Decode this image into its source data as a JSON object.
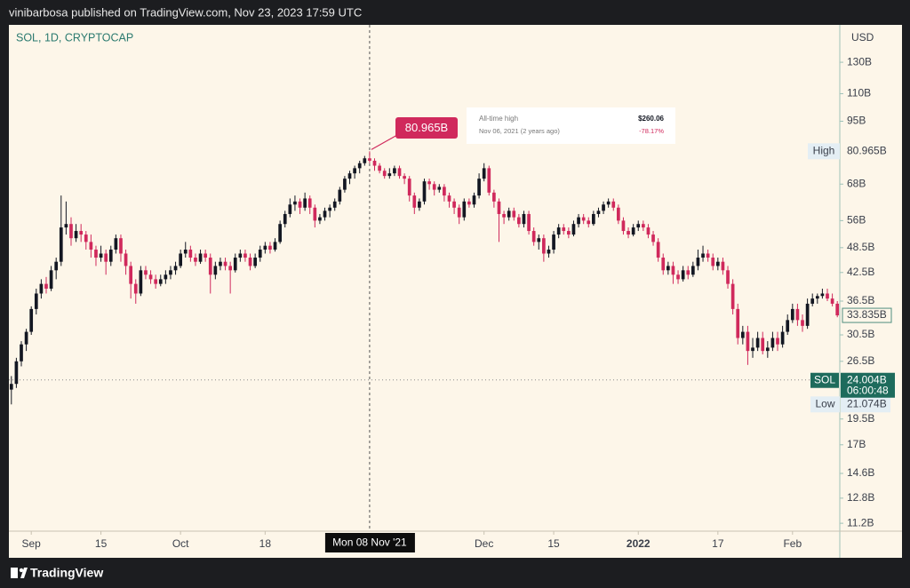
{
  "header": {
    "publisher_line": "vinibarbosa published on TradingView.com, Nov 23, 2023 17:59 UTC"
  },
  "footer": {
    "brand": "TradingView"
  },
  "chart_data": {
    "type": "candlestick",
    "symbol": "SOL, 1D, CRYPTOCAP",
    "currency": "USD",
    "log_scale": true,
    "grid": false,
    "up_color": "#131722",
    "down_color": "#d0295c",
    "ylim": [
      10.74,
      157.1
    ],
    "yticks": [
      {
        "value": 130,
        "label": "130B"
      },
      {
        "value": 110,
        "label": "110B"
      },
      {
        "value": 95,
        "label": "95B"
      },
      {
        "value": 68,
        "label": "68B"
      },
      {
        "value": 56,
        "label": "56B"
      },
      {
        "value": 48.5,
        "label": "48.5B"
      },
      {
        "value": 42.5,
        "label": "42.5B"
      },
      {
        "value": 36.5,
        "label": "36.5B"
      },
      {
        "value": 30.5,
        "label": "30.5B"
      },
      {
        "value": 26.5,
        "label": "26.5B"
      },
      {
        "value": 19.5,
        "label": "19.5B"
      },
      {
        "value": 17,
        "label": "17B"
      },
      {
        "value": 14.6,
        "label": "14.6B"
      },
      {
        "value": 12.8,
        "label": "12.8B"
      },
      {
        "value": 11.2,
        "label": "11.2B"
      }
    ],
    "xlim": [
      -0.5,
      166.5
    ],
    "xticks": [
      {
        "value": 4,
        "label": "Sep"
      },
      {
        "value": 18,
        "label": "15"
      },
      {
        "value": 34,
        "label": "Oct"
      },
      {
        "value": 51,
        "label": "18"
      },
      {
        "value": 95,
        "label": "Dec"
      },
      {
        "value": 109,
        "label": "15"
      },
      {
        "value": 126,
        "label": "2022",
        "bold": true
      },
      {
        "value": 142,
        "label": "17"
      },
      {
        "value": 157,
        "label": "Feb"
      }
    ],
    "crosshair": {
      "x": 72,
      "label": "Mon 08 Nov '21"
    },
    "high": {
      "label": "High",
      "value": 80.965,
      "value_label": "80.965B"
    },
    "low": {
      "label": "Low",
      "value": 21.074,
      "value_label": "21.074B"
    },
    "last_price": {
      "value": 33.835,
      "value_label": "33.835B"
    },
    "current": {
      "name": "SOL",
      "value": 24.004,
      "value_label": "24.004B",
      "countdown": "06:00:48"
    },
    "tooltip": {
      "title": "All-time high",
      "price": "$260.06",
      "date": "Nov 06, 2021 (2 years ago)",
      "change": "-78.17%"
    },
    "ohlc": [
      [
        22.8,
        24.5,
        21.074,
        23.5
      ],
      [
        23.5,
        27,
        23,
        26.5
      ],
      [
        26.5,
        29.5,
        25.8,
        29
      ],
      [
        29,
        31.5,
        28,
        31
      ],
      [
        31,
        35.5,
        30.5,
        35
      ],
      [
        35,
        39,
        34,
        38
      ],
      [
        38,
        41,
        37,
        40
      ],
      [
        40,
        41.5,
        38,
        39
      ],
      [
        39,
        44,
        38.5,
        43
      ],
      [
        43,
        46,
        41,
        45
      ],
      [
        45,
        64,
        44,
        54
      ],
      [
        54,
        62,
        52,
        55
      ],
      [
        55,
        57,
        49,
        51
      ],
      [
        51,
        55,
        50,
        53
      ],
      [
        53,
        55,
        50,
        52
      ],
      [
        52,
        53,
        48,
        50
      ],
      [
        50,
        52,
        46,
        48
      ],
      [
        48,
        49,
        44,
        46
      ],
      [
        46,
        49,
        45,
        47
      ],
      [
        47,
        48,
        42,
        45
      ],
      [
        45,
        49,
        44,
        48
      ],
      [
        48,
        52,
        47,
        51
      ],
      [
        51,
        52,
        45,
        47
      ],
      [
        47,
        48,
        42,
        44
      ],
      [
        44,
        45,
        37,
        40
      ],
      [
        40,
        41,
        36,
        38
      ],
      [
        38,
        44,
        37.5,
        43
      ],
      [
        43,
        44,
        41,
        42
      ],
      [
        42,
        43,
        40,
        41
      ],
      [
        41,
        42,
        39,
        40
      ],
      [
        40,
        42,
        39.5,
        41
      ],
      [
        41,
        43,
        40,
        42
      ],
      [
        42,
        44,
        41,
        43
      ],
      [
        43,
        45,
        42,
        44
      ],
      [
        44,
        48,
        43.5,
        47
      ],
      [
        47,
        50,
        46,
        48
      ],
      [
        48,
        49,
        45,
        46
      ],
      [
        46,
        47,
        44,
        45
      ],
      [
        45,
        48,
        44.5,
        47
      ],
      [
        47,
        48,
        45,
        46
      ],
      [
        46,
        47,
        38,
        42
      ],
      [
        42,
        45,
        41,
        44
      ],
      [
        44,
        46,
        43,
        45
      ],
      [
        45,
        46,
        43,
        44
      ],
      [
        44,
        45,
        38,
        43
      ],
      [
        43,
        47,
        42.5,
        46
      ],
      [
        46,
        48,
        45,
        47
      ],
      [
        47,
        48,
        45,
        46
      ],
      [
        46,
        47,
        43,
        44
      ],
      [
        44,
        47,
        43.5,
        46
      ],
      [
        46,
        49,
        45,
        48
      ],
      [
        48,
        50,
        47,
        49
      ],
      [
        49,
        50,
        47,
        48
      ],
      [
        48,
        51,
        47.5,
        50
      ],
      [
        50,
        56,
        49.5,
        55
      ],
      [
        55,
        59,
        54,
        58
      ],
      [
        58,
        63,
        57,
        61
      ],
      [
        61,
        64,
        59,
        62
      ],
      [
        62,
        63,
        58,
        60
      ],
      [
        60,
        65,
        59,
        63
      ],
      [
        63,
        64,
        58,
        60
      ],
      [
        60,
        61,
        54,
        56
      ],
      [
        56,
        58,
        55,
        57
      ],
      [
        57,
        60,
        56,
        59
      ],
      [
        59,
        61,
        57,
        60
      ],
      [
        60,
        63,
        59,
        62
      ],
      [
        62,
        67,
        61,
        66
      ],
      [
        66,
        71,
        65,
        70
      ],
      [
        70,
        73,
        68,
        72
      ],
      [
        72,
        75,
        70,
        74
      ],
      [
        74,
        77,
        72,
        76
      ],
      [
        76,
        79,
        75,
        78
      ],
      [
        78,
        80.965,
        76,
        77
      ],
      [
        77,
        78,
        73,
        75
      ],
      [
        75,
        76,
        72,
        73
      ],
      [
        73,
        74,
        70,
        71
      ],
      [
        71,
        74,
        70,
        72
      ],
      [
        72,
        75,
        71,
        74
      ],
      [
        74,
        75,
        70,
        71
      ],
      [
        71,
        72,
        68,
        70
      ],
      [
        70,
        71,
        62,
        64
      ],
      [
        64,
        65,
        58,
        60
      ],
      [
        60,
        63,
        59,
        62
      ],
      [
        62,
        70,
        61,
        69
      ],
      [
        69,
        70,
        66,
        68
      ],
      [
        68,
        69,
        64,
        66
      ],
      [
        66,
        68,
        65,
        67
      ],
      [
        67,
        68,
        62,
        64
      ],
      [
        64,
        65,
        60,
        62
      ],
      [
        62,
        63,
        58,
        60
      ],
      [
        60,
        61,
        55,
        57
      ],
      [
        57,
        63,
        56,
        62
      ],
      [
        62,
        63,
        60,
        61
      ],
      [
        61,
        65,
        60,
        64
      ],
      [
        64,
        72,
        63,
        70
      ],
      [
        70,
        76,
        69,
        74
      ],
      [
        74,
        75,
        64,
        65
      ],
      [
        65,
        66,
        60,
        62
      ],
      [
        62,
        63,
        50,
        58
      ],
      [
        58,
        59,
        55,
        57
      ],
      [
        57,
        60,
        56,
        59
      ],
      [
        59,
        60,
        56,
        57
      ],
      [
        57,
        58,
        54,
        55
      ],
      [
        55,
        59,
        54,
        58
      ],
      [
        58,
        59,
        52,
        53
      ],
      [
        53,
        54,
        49,
        50
      ],
      [
        50,
        52,
        48,
        51
      ],
      [
        51,
        52,
        45,
        47
      ],
      [
        47,
        49,
        46,
        48
      ],
      [
        48,
        53,
        47,
        52
      ],
      [
        52,
        55,
        51,
        54
      ],
      [
        54,
        55,
        52,
        53
      ],
      [
        53,
        54,
        51,
        52
      ],
      [
        52,
        56,
        51.5,
        55
      ],
      [
        55,
        58,
        54,
        57
      ],
      [
        57,
        58,
        55,
        56
      ],
      [
        56,
        57,
        54,
        55
      ],
      [
        55,
        59,
        54.5,
        58
      ],
      [
        58,
        60,
        57,
        59
      ],
      [
        59,
        62,
        58,
        61
      ],
      [
        61,
        63,
        60,
        62
      ],
      [
        62,
        63,
        59,
        60
      ],
      [
        60,
        61,
        55,
        56
      ],
      [
        56,
        57,
        52,
        53
      ],
      [
        53,
        54,
        51,
        52
      ],
      [
        52,
        55,
        51.5,
        54
      ],
      [
        54,
        56,
        53,
        55
      ],
      [
        55,
        56,
        53,
        54
      ],
      [
        54,
        55,
        51,
        52
      ],
      [
        52,
        53,
        49,
        50
      ],
      [
        50,
        51,
        45,
        46
      ],
      [
        46,
        47,
        42,
        43
      ],
      [
        43,
        45,
        42,
        44
      ],
      [
        44,
        45,
        40,
        42
      ],
      [
        42,
        43,
        40,
        41
      ],
      [
        41,
        44,
        40.5,
        43
      ],
      [
        43,
        44,
        41,
        42
      ],
      [
        42,
        45,
        41.5,
        44
      ],
      [
        44,
        48,
        43,
        46
      ],
      [
        46,
        49,
        45,
        47
      ],
      [
        47,
        48,
        45,
        46
      ],
      [
        46,
        47,
        43,
        44
      ],
      [
        44,
        46,
        43,
        45
      ],
      [
        45,
        46,
        42,
        43
      ],
      [
        43,
        44,
        39,
        40
      ],
      [
        40,
        41,
        34,
        35
      ],
      [
        35,
        36,
        29,
        30
      ],
      [
        30,
        32,
        29,
        31
      ],
      [
        31,
        32,
        26,
        28
      ],
      [
        28,
        30,
        27,
        28.5
      ],
      [
        28.5,
        31,
        28,
        30
      ],
      [
        30,
        31,
        27.5,
        28
      ],
      [
        28,
        29.5,
        27,
        28.5
      ],
      [
        28.5,
        31,
        28,
        30
      ],
      [
        30,
        31,
        28,
        29
      ],
      [
        29,
        32,
        28.5,
        31
      ],
      [
        31,
        34,
        30.5,
        33
      ],
      [
        33,
        36,
        32.5,
        35
      ],
      [
        35,
        36,
        32,
        33
      ],
      [
        33,
        34,
        31,
        32
      ],
      [
        32,
        37,
        31.5,
        36
      ],
      [
        36,
        38,
        35.5,
        37
      ],
      [
        37,
        38,
        36,
        37.5
      ],
      [
        37.5,
        39,
        37,
        38
      ],
      [
        38,
        39,
        36.5,
        37
      ],
      [
        37,
        38,
        35.5,
        36
      ],
      [
        36,
        36.5,
        33.5,
        33.835
      ]
    ]
  }
}
